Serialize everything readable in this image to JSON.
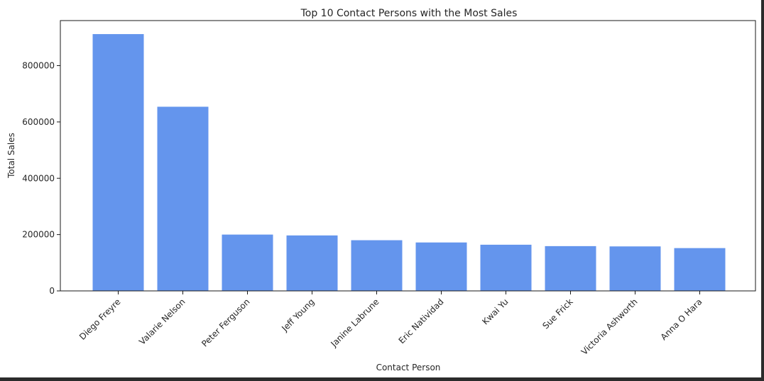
{
  "chart_data": {
    "type": "bar",
    "title": "Top 10 Contact Persons with the Most Sales",
    "xlabel": "Contact Person",
    "ylabel": "Total Sales",
    "categories": [
      "Diego Freyre",
      "Valarie Nelson",
      "Peter Ferguson",
      "Jeff Young",
      "Janine Labrune",
      "Eric Natividad",
      "Kwai Yu",
      "Sue Frick",
      "Victoria Ashworth",
      "Anna O Hara"
    ],
    "values": [
      912000,
      654000,
      200000,
      197000,
      180000,
      172000,
      164000,
      159000,
      158000,
      152000
    ],
    "ylim": [
      0,
      960000
    ],
    "yticks": [
      0,
      200000,
      400000,
      600000,
      800000
    ],
    "ytick_labels": [
      "0",
      "200000",
      "400000",
      "600000",
      "800000"
    ],
    "bar_color": "#6495ed",
    "grid": false,
    "legend": "none"
  }
}
